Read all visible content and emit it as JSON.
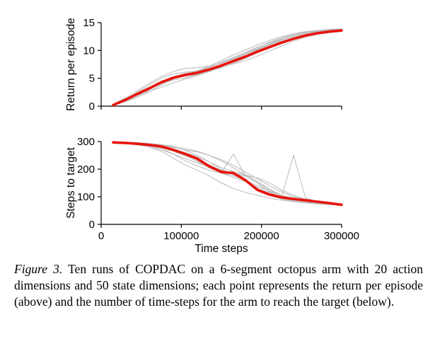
{
  "figure": {
    "caption_label": "Figure 3.",
    "caption_text": "Ten runs of COPDAC on a 6-segment octopus arm with 20 action dimensions and 50 state dimensions; each point represents the return per episode (above) and the number of time-steps for the arm to reach the target (below)."
  },
  "chart_data": [
    {
      "type": "line",
      "title": "",
      "ylabel": "Return per episode",
      "xlabel": "",
      "xlim": [
        0,
        300000
      ],
      "ylim": [
        0,
        15
      ],
      "yticks": [
        0,
        5,
        10,
        15
      ],
      "xticks": [
        0,
        100000,
        200000,
        300000
      ],
      "show_xtick_labels": false,
      "mean_color": "#e8130b",
      "run_color": "#b9b9b9",
      "x": [
        15000,
        30000,
        45000,
        60000,
        75000,
        90000,
        105000,
        120000,
        135000,
        150000,
        165000,
        180000,
        195000,
        210000,
        225000,
        240000,
        255000,
        270000,
        285000,
        300000
      ],
      "series": [
        {
          "name": "run-1",
          "values": [
            0.1,
            1.0,
            2.5,
            3.8,
            5.0,
            5.8,
            6.1,
            6.3,
            7.0,
            7.8,
            8.6,
            9.5,
            10.5,
            11.5,
            12.3,
            12.9,
            13.3,
            13.6,
            13.8,
            13.9
          ]
        },
        {
          "name": "run-2",
          "values": [
            0.3,
            1.5,
            2.0,
            2.7,
            3.4,
            4.2,
            4.9,
            5.5,
            6.2,
            7.0,
            7.6,
            8.2,
            9.0,
            9.9,
            10.8,
            11.7,
            12.4,
            12.9,
            13.2,
            13.4
          ]
        },
        {
          "name": "run-3",
          "values": [
            0.2,
            0.8,
            1.6,
            2.6,
            3.8,
            4.9,
            5.7,
            6.4,
            7.2,
            8.2,
            9.2,
            10.1,
            11.0,
            11.8,
            12.5,
            13.0,
            13.4,
            13.6,
            13.7,
            13.8
          ]
        },
        {
          "name": "run-4",
          "values": [
            0.1,
            1.4,
            2.8,
            4.1,
            5.3,
            6.2,
            6.8,
            6.9,
            7.2,
            7.7,
            8.5,
            9.4,
            10.3,
            11.2,
            12.0,
            12.6,
            13.1,
            13.4,
            13.6,
            13.7
          ]
        },
        {
          "name": "run-5",
          "values": [
            0.2,
            1.1,
            2.1,
            3.0,
            4.0,
            4.7,
            5.1,
            5.6,
            6.4,
            7.4,
            8.4,
            9.3,
            10.2,
            11.0,
            11.7,
            12.3,
            12.8,
            13.2,
            13.5,
            13.6
          ]
        },
        {
          "name": "run-6",
          "values": [
            0.3,
            1.3,
            2.4,
            3.4,
            4.5,
            5.3,
            5.9,
            6.2,
            6.8,
            7.5,
            8.2,
            9.0,
            10.0,
            11.0,
            11.9,
            12.6,
            13.1,
            13.5,
            13.7,
            13.8
          ]
        },
        {
          "name": "run-7",
          "values": [
            0.1,
            0.9,
            1.8,
            2.9,
            4.1,
            5.0,
            5.5,
            5.8,
            6.3,
            6.9,
            7.7,
            8.6,
            9.6,
            10.5,
            11.3,
            12.0,
            12.6,
            13.0,
            13.3,
            13.5
          ]
        },
        {
          "name": "run-8",
          "values": [
            0.2,
            1.2,
            2.3,
            3.3,
            4.4,
            5.2,
            5.8,
            6.3,
            7.0,
            7.9,
            8.8,
            9.7,
            10.6,
            11.4,
            12.1,
            12.7,
            13.1,
            13.4,
            13.6,
            13.7
          ]
        },
        {
          "name": "run-9",
          "values": [
            0.2,
            1.0,
            2.0,
            3.1,
            4.2,
            5.1,
            5.6,
            6.0,
            6.6,
            7.2,
            7.9,
            8.7,
            9.7,
            10.7,
            11.6,
            12.4,
            12.9,
            13.3,
            13.5,
            13.6
          ]
        },
        {
          "name": "run-10",
          "values": [
            0.1,
            1.1,
            2.2,
            3.2,
            4.3,
            5.0,
            5.4,
            5.7,
            6.3,
            7.1,
            8.0,
            9.0,
            10.1,
            11.1,
            12.0,
            12.7,
            13.2,
            13.5,
            13.7,
            13.8
          ]
        },
        {
          "name": "mean",
          "values": [
            0.2,
            1.1,
            2.2,
            3.2,
            4.3,
            5.1,
            5.6,
            6.0,
            6.6,
            7.3,
            8.1,
            8.9,
            9.8,
            10.6,
            11.4,
            12.1,
            12.7,
            13.1,
            13.4,
            13.6
          ]
        }
      ]
    },
    {
      "type": "line",
      "title": "",
      "ylabel": "Steps to target",
      "xlabel": "Time steps",
      "xlim": [
        0,
        300000
      ],
      "ylim": [
        0,
        300
      ],
      "yticks": [
        0,
        100,
        200,
        300
      ],
      "xticks": [
        0,
        100000,
        200000,
        300000
      ],
      "show_xtick_labels": true,
      "mean_color": "#e8130b",
      "run_color": "#b9b9b9",
      "x": [
        15000,
        30000,
        45000,
        60000,
        75000,
        90000,
        105000,
        120000,
        135000,
        150000,
        165000,
        180000,
        195000,
        210000,
        225000,
        240000,
        255000,
        270000,
        285000,
        300000
      ],
      "series": [
        {
          "name": "run-1",
          "values": [
            298,
            296,
            290,
            280,
            265,
            240,
            215,
            196,
            176,
            150,
            130,
            116,
            105,
            95,
            88,
            82,
            78,
            74,
            71,
            69
          ]
        },
        {
          "name": "run-2",
          "values": [
            297,
            297,
            295,
            292,
            288,
            280,
            268,
            250,
            226,
            200,
            180,
            160,
            140,
            120,
            105,
            95,
            88,
            82,
            77,
            72
          ]
        },
        {
          "name": "run-3",
          "values": [
            296,
            294,
            290,
            285,
            275,
            255,
            230,
            212,
            196,
            186,
            176,
            160,
            130,
            105,
            92,
            85,
            80,
            76,
            72,
            70
          ]
        },
        {
          "name": "run-4",
          "values": [
            299,
            297,
            294,
            290,
            285,
            278,
            270,
            262,
            250,
            234,
            214,
            190,
            165,
            140,
            118,
            100,
            90,
            84,
            78,
            73
          ]
        },
        {
          "name": "run-5",
          "values": [
            297,
            295,
            292,
            288,
            282,
            272,
            260,
            245,
            226,
            206,
            191,
            181,
            155,
            125,
            105,
            92,
            85,
            80,
            75,
            71
          ]
        },
        {
          "name": "run-6",
          "values": [
            298,
            296,
            293,
            288,
            280,
            268,
            252,
            236,
            216,
            196,
            182,
            174,
            150,
            118,
            98,
            250,
            96,
            82,
            75,
            70
          ]
        },
        {
          "name": "run-7",
          "values": [
            297,
            295,
            291,
            286,
            278,
            265,
            248,
            230,
            210,
            188,
            254,
            176,
            150,
            115,
            95,
            85,
            80,
            76,
            72,
            70
          ]
        },
        {
          "name": "run-8",
          "values": [
            298,
            297,
            295,
            290,
            283,
            270,
            250,
            228,
            205,
            185,
            170,
            155,
            135,
            112,
            95,
            86,
            80,
            75,
            72,
            70
          ]
        },
        {
          "name": "run-9",
          "values": [
            296,
            293,
            288,
            281,
            270,
            255,
            238,
            222,
            208,
            196,
            186,
            178,
            168,
            150,
            125,
            105,
            92,
            83,
            76,
            71
          ]
        },
        {
          "name": "run-10",
          "values": [
            299,
            298,
            296,
            293,
            289,
            283,
            275,
            265,
            250,
            230,
            205,
            180,
            155,
            128,
            105,
            93,
            86,
            80,
            75,
            71
          ]
        },
        {
          "name": "mean",
          "values": [
            297,
            295,
            292,
            288,
            282,
            270,
            255,
            238,
            210,
            190,
            186,
            160,
            125,
            108,
            98,
            92,
            87,
            82,
            77,
            71
          ]
        }
      ]
    }
  ]
}
